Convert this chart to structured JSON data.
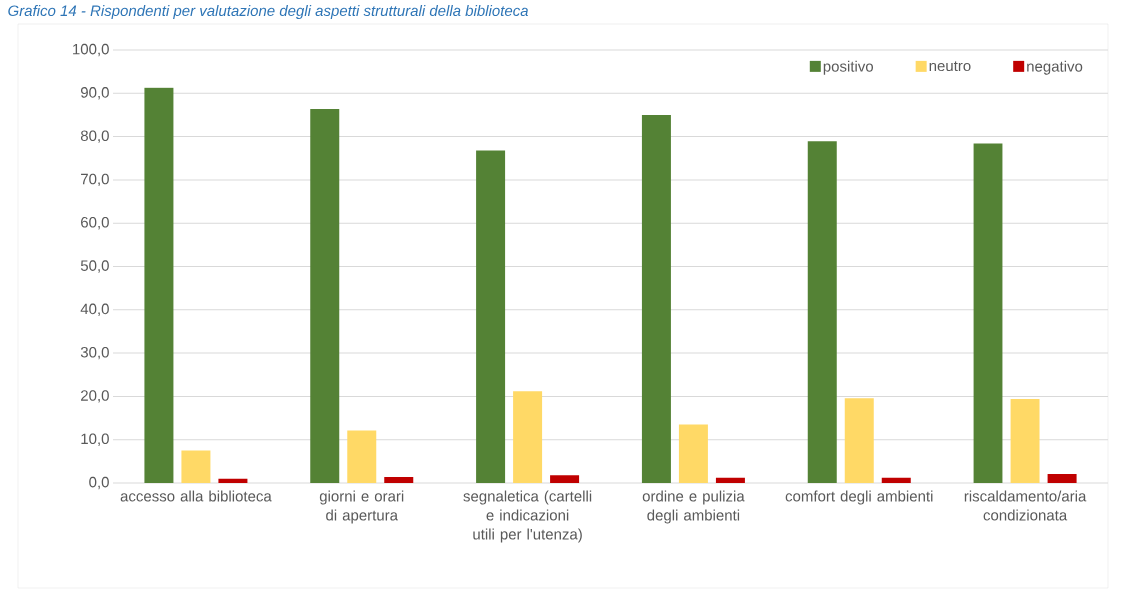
{
  "chart_data": {
    "type": "bar",
    "title": "Grafico 14 - Rispondenti per valutazione degli aspetti strutturali della biblioteca",
    "categories": [
      "accesso alla biblioteca",
      "giorni e orari di apertura",
      "segnaletica (cartelli e indicazioni utili per l'utenza)",
      "ordine e pulizia degli ambienti",
      "comfort degli ambienti",
      "riscaldamento/aria condizionata"
    ],
    "series": [
      {
        "name": "positivo",
        "color": "#548235",
        "values": [
          91.3,
          86.4,
          76.8,
          85.0,
          78.9,
          78.4
        ]
      },
      {
        "name": "neutro",
        "color": "#ffd966",
        "values": [
          7.5,
          12.1,
          21.2,
          13.5,
          19.6,
          19.4
        ]
      },
      {
        "name": "negativo",
        "color": "#c00000",
        "values": [
          1.0,
          1.4,
          1.8,
          1.2,
          1.2,
          2.1
        ]
      }
    ],
    "ylim": [
      0,
      100
    ],
    "yticks": [
      {
        "value": 0,
        "label": "0,0"
      },
      {
        "value": 10,
        "label": "10,0"
      },
      {
        "value": 20,
        "label": "20,0"
      },
      {
        "value": 30,
        "label": "30,0"
      },
      {
        "value": 40,
        "label": "40,0"
      },
      {
        "value": 50,
        "label": "50,0"
      },
      {
        "value": 60,
        "label": "60,0"
      },
      {
        "value": 70,
        "label": "70,0"
      },
      {
        "value": 80,
        "label": "80,0"
      },
      {
        "value": 90,
        "label": "90,0"
      },
      {
        "value": 100,
        "label": "100,0"
      }
    ],
    "grid": "y",
    "legend": "top right"
  }
}
